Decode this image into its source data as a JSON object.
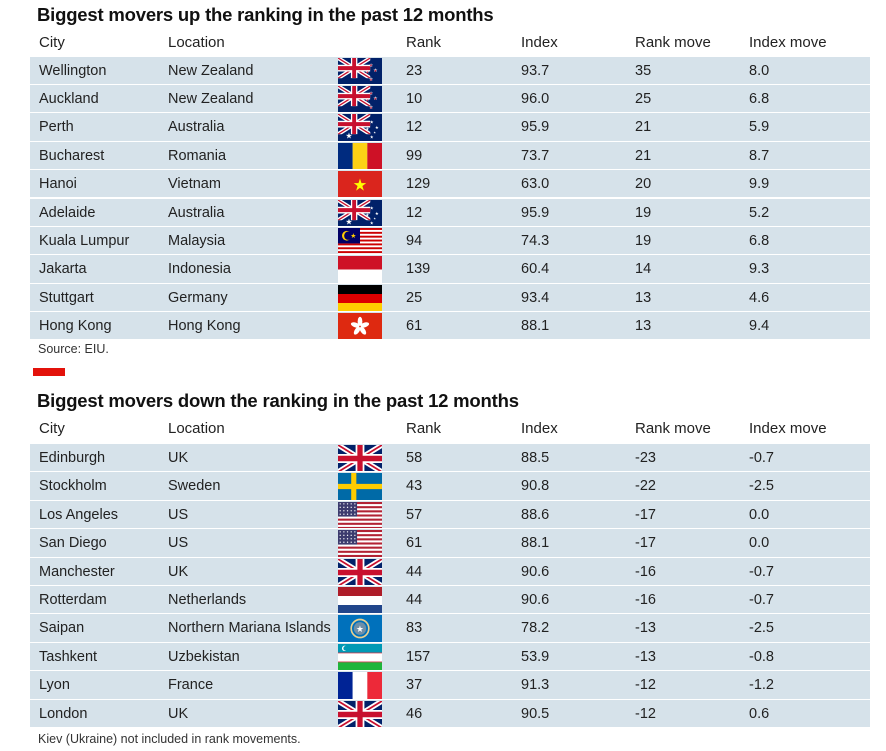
{
  "up": {
    "title": "Biggest movers up the ranking in the past 12 months",
    "headers": {
      "city": "City",
      "location": "Location",
      "rank": "Rank",
      "index": "Index",
      "rank_move": "Rank move",
      "index_move": "Index move"
    },
    "rows": [
      {
        "city": "Wellington",
        "location": "New Zealand",
        "flag": "nz-flag-icon",
        "rank": "23",
        "index": "93.7",
        "rank_move": "35",
        "index_move": "8.0"
      },
      {
        "city": "Auckland",
        "location": "New Zealand",
        "flag": "nz-flag-icon",
        "rank": "10",
        "index": "96.0",
        "rank_move": "25",
        "index_move": "6.8"
      },
      {
        "city": "Perth",
        "location": "Australia",
        "flag": "australia-flag-icon",
        "rank": "12",
        "index": "95.9",
        "rank_move": "21",
        "index_move": "5.9"
      },
      {
        "city": "Bucharest",
        "location": "Romania",
        "flag": "romania-flag-icon",
        "rank": "99",
        "index": "73.7",
        "rank_move": "21",
        "index_move": "8.7"
      },
      {
        "city": "Hanoi",
        "location": "Vietnam",
        "flag": "vietnam-flag-icon",
        "rank": "129",
        "index": "63.0",
        "rank_move": "20",
        "index_move": "9.9"
      },
      {
        "city": "Adelaide",
        "location": "Australia",
        "flag": "australia-flag-icon",
        "rank": "12",
        "index": "95.9",
        "rank_move": "19",
        "index_move": "5.2"
      },
      {
        "city": "Kuala Lumpur",
        "location": "Malaysia",
        "flag": "malaysia-flag-icon",
        "rank": "94",
        "index": "74.3",
        "rank_move": "19",
        "index_move": "6.8"
      },
      {
        "city": "Jakarta",
        "location": "Indonesia",
        "flag": "indonesia-flag-icon",
        "rank": "139",
        "index": "60.4",
        "rank_move": "14",
        "index_move": "9.3"
      },
      {
        "city": "Stuttgart",
        "location": "Germany",
        "flag": "germany-flag-icon",
        "rank": "25",
        "index": "93.4",
        "rank_move": "13",
        "index_move": "4.6"
      },
      {
        "city": "Hong Kong",
        "location": "Hong Kong",
        "flag": "hong-kong-flag-icon",
        "rank": "61",
        "index": "88.1",
        "rank_move": "13",
        "index_move": "9.4"
      }
    ],
    "note": "Source: EIU."
  },
  "down": {
    "title": "Biggest movers down the ranking in the past 12 months",
    "headers": {
      "city": "City",
      "location": "Location",
      "rank": "Rank",
      "index": "Index",
      "rank_move": "Rank move",
      "index_move": "Index move"
    },
    "rows": [
      {
        "city": "Edinburgh",
        "location": "UK",
        "flag": "uk-flag-icon",
        "rank": "58",
        "index": "88.5",
        "rank_move": "-23",
        "index_move": "-0.7"
      },
      {
        "city": "Stockholm",
        "location": "Sweden",
        "flag": "sweden-flag-icon",
        "rank": "43",
        "index": "90.8",
        "rank_move": "-22",
        "index_move": "-2.5"
      },
      {
        "city": "Los Angeles",
        "location": "US",
        "flag": "us-flag-icon",
        "rank": "57",
        "index": "88.6",
        "rank_move": "-17",
        "index_move": "0.0"
      },
      {
        "city": "San Diego",
        "location": "US",
        "flag": "us-flag-icon",
        "rank": "61",
        "index": "88.1",
        "rank_move": "-17",
        "index_move": "0.0"
      },
      {
        "city": "Manchester",
        "location": "UK",
        "flag": "uk-flag-icon",
        "rank": "44",
        "index": "90.6",
        "rank_move": "-16",
        "index_move": "-0.7"
      },
      {
        "city": "Rotterdam",
        "location": "Netherlands",
        "flag": "netherlands-flag-icon",
        "rank": "44",
        "index": "90.6",
        "rank_move": "-16",
        "index_move": "-0.7"
      },
      {
        "city": "Saipan",
        "location": "Northern Mariana Islands",
        "flag": "northern-mariana-islands-flag-icon",
        "rank": "83",
        "index": "78.2",
        "rank_move": "-13",
        "index_move": "-2.5"
      },
      {
        "city": "Tashkent",
        "location": "Uzbekistan",
        "flag": "uzbekistan-flag-icon",
        "rank": "157",
        "index": "53.9",
        "rank_move": "-13",
        "index_move": "-0.8"
      },
      {
        "city": "Lyon",
        "location": "France",
        "flag": "france-flag-icon",
        "rank": "37",
        "index": "91.3",
        "rank_move": "-12",
        "index_move": "-1.2"
      },
      {
        "city": "London",
        "location": "UK",
        "flag": "uk-flag-icon",
        "rank": "46",
        "index": "90.5",
        "rank_move": "-12",
        "index_move": "0.6"
      }
    ],
    "note": "Kiev (Ukraine) not included in rank movements."
  },
  "colors": {
    "row_shade": "#d6e2ea",
    "accent_bar": "#e3120b"
  }
}
